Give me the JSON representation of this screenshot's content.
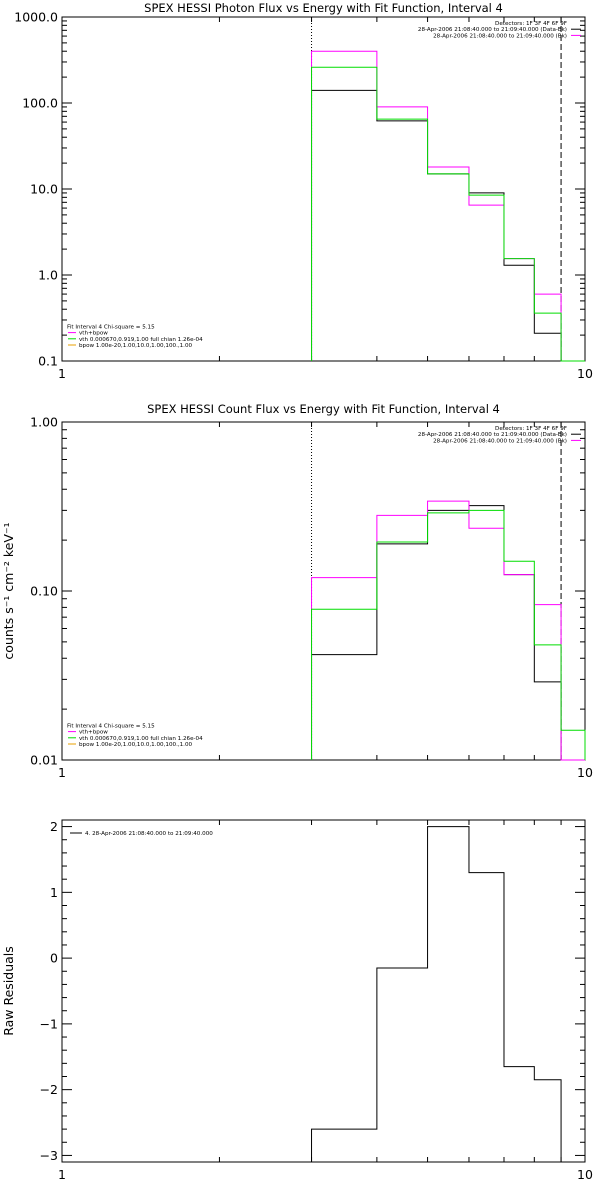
{
  "colors": {
    "data": "#000000",
    "total": "#ff00ff",
    "vth": "#00dd00",
    "bpow": "#e8a000",
    "axis": "#000000"
  },
  "chart_data": [
    {
      "type": "step",
      "title": "SPEX HESSI Photon Flux vs Energy with Fit Function, Interval 4",
      "xlabel": "",
      "ylabel": "",
      "xscale": "log",
      "yscale": "log",
      "xlim": [
        1,
        10
      ],
      "ylim": [
        0.1,
        1000
      ],
      "x_ticks": [
        {
          "v": 1,
          "label": "1"
        },
        {
          "v": 10,
          "label": "10"
        }
      ],
      "y_ticks": [
        {
          "v": 0.1,
          "label": "0.1"
        },
        {
          "v": 1,
          "label": "1.0"
        },
        {
          "v": 10,
          "label": "10.0"
        },
        {
          "v": 100,
          "label": "100.0"
        },
        {
          "v": 1000,
          "label": "1000.0"
        }
      ],
      "edges": [
        3,
        4,
        5,
        6,
        7,
        8,
        9,
        10
      ],
      "vlines": [
        {
          "x": 3,
          "style": "dotted"
        },
        {
          "x": 9,
          "style": "dashed"
        }
      ],
      "legend_top": [
        "Detectors: 1F 3F 4F 6F 9F",
        "28-Apr-2006 21:08:40.000 to 21:09:40.000 (Data-Bk)",
        "28-Apr-2006 21:08:40.000 to 21:09:40.000 (Bk)"
      ],
      "legend_top_colors": [
        "none",
        "#000000",
        "#ff00ff"
      ],
      "legend_bottom": [
        "Fit Interval  4    Chi-square = 5.15",
        "vth+bpow",
        "vth 0.000670,0.919,1.00  full chian 1.26e-04",
        "bpow 1.00e-20,1.00,10.0,1.00,100.,1.00"
      ],
      "legend_bottom_colors": [
        "none",
        "#ff00ff",
        "#00dd00",
        "#e8a000"
      ],
      "series": [
        {
          "name": "28-Apr-2006 21:08:40.000 to 21:09:40.000 (Data-Bk)",
          "color": "#000000",
          "values": [
            140,
            62,
            15,
            9,
            1.3,
            0.21,
            null
          ]
        },
        {
          "name": "vth+bpow",
          "color": "#ff00ff",
          "values": [
            400,
            90,
            18,
            6.5,
            1.55,
            0.6,
            0.1
          ]
        },
        {
          "name": "vth 0.000670,0.919,1.00  full chian 1.26e-04",
          "color": "#00dd00",
          "values": [
            260,
            65,
            15,
            8.5,
            1.55,
            0.36,
            0.1
          ]
        }
      ]
    },
    {
      "type": "step",
      "title": "SPEX HESSI Count Flux vs Energy with Fit Function, Interval 4",
      "xlabel": "",
      "ylabel": "counts s⁻¹ cm⁻² keV⁻¹",
      "xscale": "log",
      "yscale": "log",
      "xlim": [
        1,
        10
      ],
      "ylim": [
        0.01,
        1
      ],
      "x_ticks": [
        {
          "v": 1,
          "label": "1"
        },
        {
          "v": 10,
          "label": "10"
        }
      ],
      "y_ticks": [
        {
          "v": 0.01,
          "label": "0.01"
        },
        {
          "v": 0.1,
          "label": "0.10"
        },
        {
          "v": 1,
          "label": "1.00"
        }
      ],
      "edges": [
        3,
        4,
        5,
        6,
        7,
        8,
        9,
        10
      ],
      "vlines": [
        {
          "x": 3,
          "style": "dotted"
        },
        {
          "x": 9,
          "style": "dashed"
        }
      ],
      "legend_top": [
        "Detectors: 1F 3F 4F 6F 9F",
        "28-Apr-2006 21:08:40.000 to 21:09:40.000 (Data-Bk)",
        "28-Apr-2006 21:08:40.000 to 21:09:40.000 (Bk)"
      ],
      "legend_top_colors": [
        "none",
        "#000000",
        "#ff00ff"
      ],
      "legend_bottom": [
        "Fit Interval  4    Chi-square = 5.15",
        "vth+bpow",
        "vth 0.000670,0.919,1.00  full chian 1.26e-04",
        "bpow 1.00e-20,1.00,10.0,1.00,100.,1.00"
      ],
      "legend_bottom_colors": [
        "none",
        "#ff00ff",
        "#00dd00",
        "#e8a000"
      ],
      "series": [
        {
          "name": "28-Apr-2006 21:08:40.000 to 21:09:40.000 (Data-Bk)",
          "color": "#000000",
          "values": [
            0.042,
            0.19,
            0.3,
            0.32,
            0.125,
            0.029,
            null
          ]
        },
        {
          "name": "vth+bpow",
          "color": "#ff00ff",
          "values": [
            0.12,
            0.28,
            0.34,
            0.235,
            0.125,
            0.083,
            0.005
          ]
        },
        {
          "name": "vth 0.000670,0.919,1.00  full chian 1.26e-04",
          "color": "#00dd00",
          "values": [
            0.078,
            0.195,
            0.29,
            0.3,
            0.15,
            0.048,
            0.015
          ]
        }
      ]
    },
    {
      "type": "step",
      "title": "",
      "xlabel": "",
      "ylabel": "Raw Residuals",
      "xscale": "log",
      "yscale": "linear",
      "xlim": [
        1,
        10
      ],
      "ylim": [
        -3.1,
        2.1
      ],
      "x_ticks": [
        {
          "v": 1,
          "label": "1"
        },
        {
          "v": 10,
          "label": "10"
        }
      ],
      "y_ticks": [
        {
          "v": -3,
          "label": "−3"
        },
        {
          "v": -2,
          "label": "−2"
        },
        {
          "v": -1,
          "label": "−1"
        },
        {
          "v": 0,
          "label": "0"
        },
        {
          "v": 1,
          "label": "1"
        },
        {
          "v": 2,
          "label": "2"
        }
      ],
      "edges": [
        3,
        4,
        5,
        6,
        7,
        8,
        9
      ],
      "vlines": [],
      "legend_top": [],
      "legend_top_colors": [],
      "legend_bottom": [],
      "legend_bottom_colors": [],
      "legend_left": "4. 28-Apr-2006 21:08:40.000 to 21:09:40.000",
      "series": [
        {
          "name": "4. 28-Apr-2006 21:08:40.000 to 21:09:40.000",
          "color": "#000000",
          "values": [
            -2.6,
            -0.15,
            2.0,
            1.3,
            -1.65,
            -1.85
          ]
        }
      ]
    }
  ]
}
